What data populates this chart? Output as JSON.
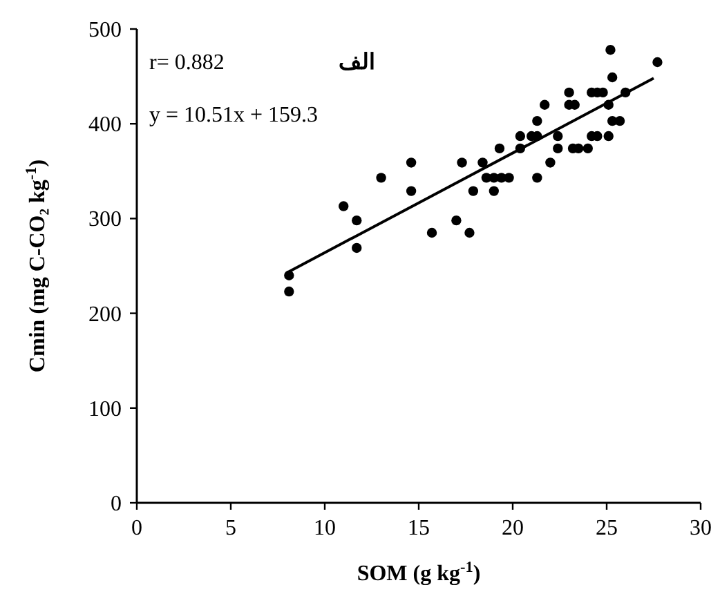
{
  "chart_data": {
    "type": "scatter",
    "title": "الف",
    "xlabel": "SOM (g kg$^{-1}$)",
    "ylabel": "Cmin (mg C-CO₂ kg$^{-1}$)",
    "annotations": [
      "r= 0.882",
      "y = 10.51x + 159.3"
    ],
    "xlim": [
      0,
      30
    ],
    "xticks": [
      0,
      5,
      10,
      15,
      20,
      25,
      30
    ],
    "ylim": [
      0,
      500
    ],
    "yticks": [
      0,
      100,
      200,
      300,
      400,
      500
    ],
    "grid": false,
    "marker": "circle",
    "series": [
      {
        "type": "scatter",
        "color": "#000000",
        "x": [
          8.1,
          8.1,
          11.0,
          11.7,
          11.7,
          13.0,
          14.6,
          14.6,
          15.7,
          17.0,
          17.3,
          17.7,
          17.9,
          18.4,
          18.6,
          19.0,
          19.4,
          19.8,
          19.0,
          19.3,
          20.4,
          20.4,
          21.0,
          21.3,
          21.3,
          21.7,
          21.3,
          22.0,
          22.4,
          22.4,
          23.2,
          23.5,
          24.0,
          23.0,
          23.0,
          23.3,
          24.2,
          24.5,
          24.8,
          24.2,
          24.5,
          25.1,
          25.1,
          25.3,
          26.0,
          25.3,
          25.7,
          27.7,
          25.2
        ],
        "values": [
          240,
          223,
          313,
          298,
          269,
          343,
          359,
          329,
          285,
          298,
          359,
          285,
          329,
          359,
          343,
          343,
          343,
          343,
          329,
          374,
          387,
          374,
          387,
          387,
          403,
          420,
          343,
          359,
          387,
          374,
          374,
          374,
          374,
          433,
          420,
          420,
          433,
          433,
          433,
          387,
          387,
          387,
          420,
          449,
          433,
          403,
          403,
          465,
          478
        ]
      },
      {
        "type": "line",
        "color": "#000000",
        "marker": "none",
        "x": [
          8.1,
          27.5
        ],
        "values": [
          244,
          448
        ]
      }
    ]
  }
}
